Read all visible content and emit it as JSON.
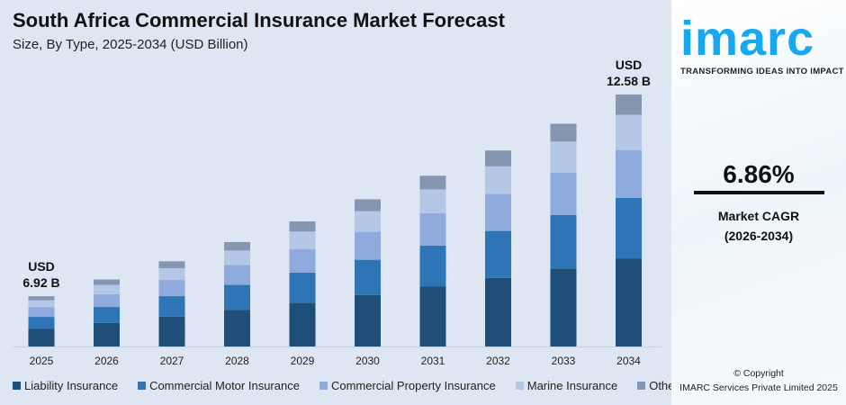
{
  "chart_data": {
    "type": "bar",
    "stacked": true,
    "title": "South Africa Commercial Insurance Market Forecast",
    "subtitle": "Size, By Type, 2025-2034 (USD Billion)",
    "categories": [
      "2025",
      "2026",
      "2027",
      "2028",
      "2029",
      "2030",
      "2031",
      "2032",
      "2033",
      "2034"
    ],
    "totals": [
      6.92,
      7.39,
      7.9,
      8.44,
      9.02,
      9.64,
      10.3,
      11.01,
      11.76,
      12.58
    ],
    "series": [
      {
        "name": "Liability Insurance",
        "color": "#1f4e79",
        "values": [
          2.42,
          2.59,
          2.77,
          2.95,
          3.16,
          3.37,
          3.61,
          3.85,
          4.12,
          4.4
        ]
      },
      {
        "name": "Commercial Motor Insurance",
        "color": "#2e75b6",
        "values": [
          1.66,
          1.77,
          1.9,
          2.03,
          2.16,
          2.31,
          2.47,
          2.64,
          2.82,
          3.02
        ]
      },
      {
        "name": "Commercial Property Insurance",
        "color": "#8faadc",
        "values": [
          1.31,
          1.4,
          1.5,
          1.6,
          1.71,
          1.83,
          1.96,
          2.09,
          2.23,
          2.39
        ]
      },
      {
        "name": "Marine Insurance",
        "color": "#b4c7e7",
        "values": [
          0.97,
          1.03,
          1.1,
          1.18,
          1.26,
          1.35,
          1.44,
          1.54,
          1.65,
          1.76
        ]
      },
      {
        "name": "Others",
        "color": "#8496b0",
        "values": [
          0.56,
          0.6,
          0.63,
          0.68,
          0.73,
          0.78,
          0.82,
          0.89,
          0.94,
          1.01
        ]
      }
    ],
    "annotations": [
      {
        "category": "2025",
        "lines": [
          "USD",
          "6.92 B"
        ]
      },
      {
        "category": "2034",
        "lines": [
          "USD",
          "12.58 B"
        ]
      }
    ],
    "grid": false,
    "legend": "bottom"
  },
  "panel": {
    "logo": "imarc",
    "tagline": "TRANSFORMING IDEAS INTO IMPACT",
    "cagr_value": "6.86%",
    "cagr_label": "Market CAGR",
    "cagr_period": "(2026-2034)",
    "copyright": "© Copyright",
    "company": "IMARC Services Private Limited 2025"
  }
}
